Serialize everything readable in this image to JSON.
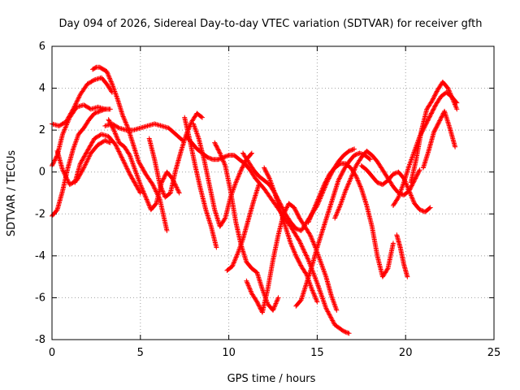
{
  "chart_data": {
    "type": "scatter",
    "title": "Day 094 of 2026, Sidereal Day-to-day VTEC variation (SDTVAR) for receiver gfth",
    "xlabel": "GPS time / hours",
    "ylabel": "SDTVAR / TECUs",
    "xlim": [
      0,
      25
    ],
    "ylim": [
      -8,
      6
    ],
    "xticks": [
      0,
      5,
      10,
      15,
      20,
      25
    ],
    "yticks": [
      -8,
      -6,
      -4,
      -2,
      0,
      2,
      4,
      6
    ],
    "grid": true,
    "marker": "+",
    "color": "#ff0000",
    "series": [
      {
        "name": "trace-1",
        "x": [
          0.0,
          0.3,
          0.6,
          1.0,
          1.4,
          1.8,
          2.2,
          2.6,
          3.0,
          3.3
        ],
        "y": [
          0.3,
          0.8,
          1.8,
          2.6,
          3.1,
          3.2,
          3.0,
          3.1,
          3.0,
          3.0
        ]
      },
      {
        "name": "trace-2",
        "x": [
          0.0,
          0.4,
          0.8,
          1.2,
          1.6,
          2.0,
          2.4,
          2.8,
          3.1,
          3.4
        ],
        "y": [
          2.3,
          2.2,
          2.4,
          3.0,
          3.7,
          4.2,
          4.4,
          4.5,
          4.2,
          3.8
        ]
      },
      {
        "name": "trace-3",
        "x": [
          0.0,
          0.3,
          0.6,
          0.9,
          1.2,
          1.5,
          1.8,
          2.1,
          2.4,
          2.7,
          3.0
        ],
        "y": [
          -2.1,
          -1.8,
          -0.9,
          0.2,
          1.1,
          1.8,
          2.1,
          2.5,
          2.8,
          2.9,
          3.0
        ]
      },
      {
        "name": "trace-4",
        "x": [
          2.3,
          2.5,
          2.7,
          2.9,
          3.1,
          3.4,
          3.7,
          4.0,
          4.3,
          4.6,
          4.9,
          5.3,
          5.7,
          6.1,
          6.5
        ],
        "y": [
          4.9,
          5.0,
          5.0,
          4.9,
          4.8,
          4.2,
          3.5,
          2.7,
          2.1,
          1.3,
          0.5,
          -0.1,
          -0.6,
          -1.3,
          -2.8
        ]
      },
      {
        "name": "trace-5",
        "x": [
          0.3,
          0.6,
          1.0,
          1.4,
          1.8,
          2.2,
          2.6,
          3.0,
          3.3
        ],
        "y": [
          1.0,
          0.1,
          -0.6,
          -0.4,
          0.2,
          0.9,
          1.3,
          1.5,
          1.4
        ]
      },
      {
        "name": "trace-6",
        "x": [
          1.3,
          1.6,
          2.0,
          2.4,
          2.8,
          3.2,
          3.6,
          4.0,
          4.4,
          4.8,
          5.0
        ],
        "y": [
          -0.5,
          0.4,
          1.0,
          1.6,
          1.8,
          1.7,
          1.3,
          0.6,
          -0.1,
          -0.7,
          -1.0
        ]
      },
      {
        "name": "trace-7",
        "x": [
          3.0,
          3.4,
          3.8,
          4.2,
          4.6,
          5.0,
          5.4,
          5.8,
          6.2,
          6.6,
          7.0,
          7.4
        ],
        "y": [
          2.2,
          2.3,
          2.1,
          2.0,
          2.0,
          2.1,
          2.2,
          2.3,
          2.2,
          2.1,
          1.8,
          1.5
        ]
      },
      {
        "name": "trace-8",
        "x": [
          3.2,
          3.5,
          3.8,
          4.1,
          4.4,
          4.7,
          5.0,
          5.3,
          5.6,
          5.9,
          6.2,
          6.5,
          6.8,
          7.2
        ],
        "y": [
          2.5,
          2.0,
          1.4,
          1.2,
          0.8,
          0.1,
          -0.6,
          -1.2,
          -1.8,
          -1.5,
          -0.5,
          0.0,
          -0.3,
          -1.0
        ]
      },
      {
        "name": "trace-9",
        "x": [
          5.5,
          5.8,
          6.1,
          6.4,
          6.7,
          7.0,
          7.3,
          7.6,
          7.9,
          8.2,
          8.5
        ],
        "y": [
          1.6,
          0.6,
          -0.6,
          -1.2,
          -1.0,
          0.1,
          1.0,
          1.8,
          2.4,
          2.8,
          2.6
        ]
      },
      {
        "name": "trace-10",
        "x": [
          7.5,
          7.8,
          8.1,
          8.4,
          8.7,
          9.0,
          9.3
        ],
        "y": [
          2.6,
          1.5,
          0.3,
          -0.8,
          -1.8,
          -2.6,
          -3.6
        ]
      },
      {
        "name": "trace-11",
        "x": [
          7.6,
          7.9,
          8.2,
          8.5,
          8.8,
          9.1,
          9.4,
          9.7,
          10.0,
          10.3,
          10.6,
          10.9,
          11.2,
          11.5,
          12.0,
          12.5,
          13.0,
          13.5,
          14.0,
          14.5,
          15.0,
          15.5,
          16.0,
          16.5,
          16.8
        ],
        "y": [
          1.7,
          1.4,
          1.1,
          0.9,
          0.7,
          0.6,
          0.6,
          0.7,
          0.8,
          0.8,
          0.6,
          0.4,
          0.1,
          -0.3,
          -0.8,
          -1.4,
          -2.0,
          -2.6,
          -3.3,
          -4.2,
          -5.3,
          -6.5,
          -7.3,
          -7.6,
          -7.7
        ]
      },
      {
        "name": "trace-12",
        "x": [
          8.0,
          8.3,
          8.6,
          8.9,
          9.2,
          9.5,
          9.8,
          10.1,
          10.4,
          10.7,
          11.0,
          11.3
        ],
        "y": [
          2.3,
          1.6,
          0.6,
          -0.6,
          -1.8,
          -2.6,
          -2.2,
          -1.2,
          -0.5,
          0.1,
          0.6,
          0.9
        ]
      },
      {
        "name": "trace-13",
        "x": [
          9.2,
          9.5,
          9.8,
          10.1,
          10.4,
          10.7,
          11.0,
          11.3,
          11.6,
          11.9,
          12.2,
          12.5,
          12.8
        ],
        "y": [
          1.4,
          0.9,
          0.3,
          -0.9,
          -2.4,
          -3.5,
          -4.3,
          -4.6,
          -4.8,
          -5.6,
          -6.3,
          -6.6,
          -6.0
        ]
      },
      {
        "name": "trace-14",
        "x": [
          9.9,
          10.2,
          10.5,
          10.8,
          11.1,
          11.4,
          11.7
        ],
        "y": [
          -4.7,
          -4.5,
          -3.9,
          -3.2,
          -2.3,
          -1.4,
          -0.6
        ]
      },
      {
        "name": "trace-15",
        "x": [
          10.8,
          11.1,
          11.4,
          11.7,
          12.0,
          12.3,
          12.6,
          12.9,
          13.2,
          13.5,
          13.8,
          14.1,
          14.4,
          14.7,
          15.0,
          15.3,
          15.6,
          15.9,
          16.2,
          16.5,
          16.8,
          17.1
        ],
        "y": [
          0.9,
          0.5,
          0.1,
          -0.2,
          -0.4,
          -0.6,
          -1.0,
          -1.5,
          -2.0,
          -2.4,
          -2.7,
          -2.8,
          -2.4,
          -2.0,
          -1.6,
          -1.0,
          -0.4,
          0.1,
          0.5,
          0.8,
          1.0,
          1.1
        ]
      },
      {
        "name": "trace-16",
        "x": [
          11.0,
          11.3,
          11.6,
          11.9,
          12.2,
          12.5,
          12.8,
          13.1,
          13.4,
          13.7,
          14.0,
          14.3,
          14.6,
          14.9,
          15.2,
          15.5,
          15.8,
          16.1
        ],
        "y": [
          -5.2,
          -5.8,
          -6.2,
          -6.7,
          -5.6,
          -4.2,
          -3.0,
          -2.0,
          -1.5,
          -1.7,
          -2.2,
          -2.6,
          -3.0,
          -3.6,
          -4.3,
          -5.0,
          -5.9,
          -6.6
        ]
      },
      {
        "name": "trace-17",
        "x": [
          12.0,
          12.3,
          12.6,
          12.9,
          13.2,
          13.5,
          13.8,
          14.1,
          14.4,
          14.7,
          15.0
        ],
        "y": [
          0.2,
          -0.3,
          -1.0,
          -1.8,
          -2.6,
          -3.4,
          -4.0,
          -4.5,
          -4.9,
          -5.6,
          -6.2
        ]
      },
      {
        "name": "trace-18",
        "x": [
          13.8,
          14.1,
          14.4,
          14.7,
          15.0,
          15.3,
          15.6,
          15.9,
          16.2,
          16.5,
          16.8,
          17.1,
          17.4,
          17.7,
          18.0
        ],
        "y": [
          -6.4,
          -6.1,
          -5.3,
          -4.5,
          -3.6,
          -2.8,
          -2.0,
          -1.2,
          -0.4,
          0.1,
          0.5,
          0.8,
          0.9,
          0.8,
          0.6
        ]
      },
      {
        "name": "trace-19",
        "x": [
          14.5,
          14.8,
          15.1,
          15.4,
          15.7,
          16.0,
          16.3,
          16.6,
          16.9,
          17.2,
          17.5,
          17.8,
          18.1,
          18.4,
          18.7,
          19.0,
          19.3
        ],
        "y": [
          -2.4,
          -1.8,
          -1.2,
          -0.6,
          -0.1,
          0.2,
          0.4,
          0.4,
          0.2,
          -0.2,
          -0.8,
          -1.6,
          -2.6,
          -4.0,
          -5.0,
          -4.6,
          -3.4
        ]
      },
      {
        "name": "trace-20",
        "x": [
          16.0,
          16.3,
          16.6,
          16.9,
          17.2,
          17.5,
          17.8,
          18.1,
          18.4,
          18.7,
          19.0,
          19.3,
          19.6,
          19.9,
          20.2,
          20.5,
          20.8
        ],
        "y": [
          -2.2,
          -1.6,
          -0.9,
          -0.3,
          0.3,
          0.7,
          1.0,
          0.8,
          0.5,
          0.1,
          -0.3,
          -0.7,
          -1.0,
          -1.1,
          -0.9,
          -0.4,
          0.1
        ]
      },
      {
        "name": "trace-21",
        "x": [
          17.5,
          17.8,
          18.1,
          18.4,
          18.7,
          19.0,
          19.3,
          19.6,
          19.9,
          20.2,
          20.5,
          20.8,
          21.1,
          21.4
        ],
        "y": [
          0.3,
          0.1,
          -0.2,
          -0.5,
          -0.6,
          -0.4,
          -0.1,
          0.0,
          -0.3,
          -0.9,
          -1.5,
          -1.8,
          -1.9,
          -1.7
        ]
      },
      {
        "name": "trace-22",
        "x": [
          19.5,
          19.7,
          19.9,
          20.1
        ],
        "y": [
          -3.0,
          -3.6,
          -4.4,
          -5.0
        ]
      },
      {
        "name": "trace-23",
        "x": [
          19.3,
          19.6,
          19.9,
          20.2,
          20.5,
          20.8,
          21.1,
          21.4,
          21.7,
          22.0,
          22.3,
          22.6,
          22.9
        ],
        "y": [
          -1.6,
          -1.2,
          -0.5,
          0.3,
          1.0,
          1.7,
          2.2,
          2.7,
          3.2,
          3.6,
          3.8,
          3.6,
          3.3
        ]
      },
      {
        "name": "trace-24",
        "x": [
          20.3,
          20.6,
          20.9,
          21.2,
          21.5,
          21.8,
          22.1,
          22.4,
          22.7,
          22.9
        ],
        "y": [
          -0.5,
          0.6,
          2.0,
          3.0,
          3.4,
          3.9,
          4.3,
          4.0,
          3.4,
          3.0
        ]
      },
      {
        "name": "trace-25",
        "x": [
          21.0,
          21.3,
          21.6,
          21.9,
          22.2,
          22.5,
          22.8
        ],
        "y": [
          0.2,
          1.0,
          1.9,
          2.4,
          2.9,
          2.1,
          1.2
        ]
      }
    ]
  }
}
